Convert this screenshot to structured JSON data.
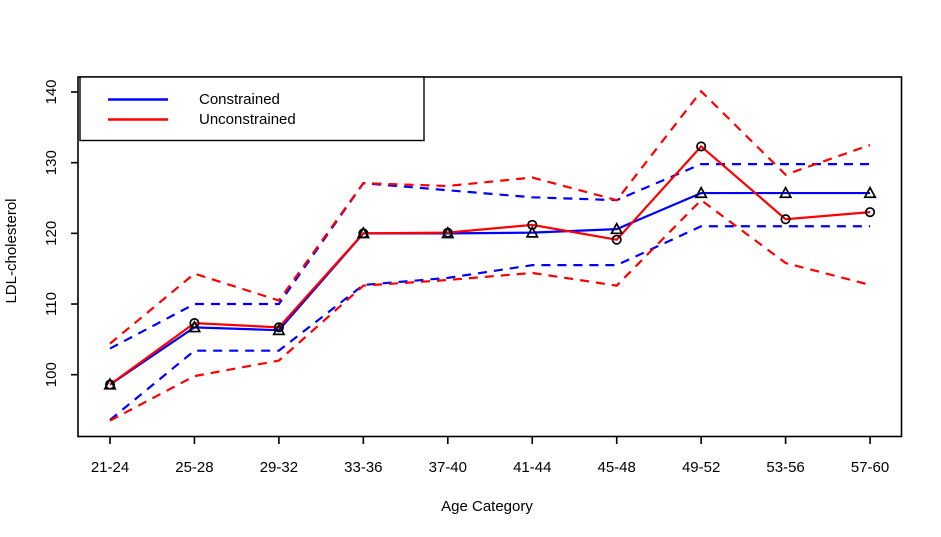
{
  "chart_data": {
    "type": "line",
    "title": "",
    "xlabel": "Age Category",
    "ylabel": "LDL-cholesterol",
    "ylim": [
      92,
      142
    ],
    "yticks": [
      100,
      110,
      120,
      130,
      140
    ],
    "categories": [
      "21-24",
      "25-28",
      "29-32",
      "33-36",
      "37-40",
      "41-44",
      "45-48",
      "49-52",
      "53-56",
      "57-60"
    ],
    "series": [
      {
        "name": "Constrained",
        "role": "estimate",
        "color": "#0000ff",
        "style": "solid",
        "marker": "triangle",
        "marker_color": "#000000",
        "values": [
          98.6,
          106.7,
          106.3,
          120.0,
          120.0,
          120.1,
          120.6,
          125.7,
          125.7,
          125.7
        ]
      },
      {
        "name": "Unconstrained",
        "role": "estimate",
        "color": "#ff0000",
        "style": "solid",
        "marker": "circle",
        "marker_color": "#000000",
        "values": [
          98.6,
          107.3,
          106.7,
          120.0,
          120.1,
          121.2,
          119.1,
          132.3,
          122.0,
          123.0
        ]
      },
      {
        "name": "Constrained upper band",
        "role": "upper-band",
        "color": "#0000ff",
        "style": "dashed",
        "marker": null,
        "values": [
          103.7,
          110.0,
          110.0,
          127.1,
          126.1,
          125.1,
          124.7,
          129.8,
          129.8,
          129.8
        ]
      },
      {
        "name": "Constrained lower band",
        "role": "lower-band",
        "color": "#0000ff",
        "style": "dashed",
        "marker": null,
        "values": [
          93.6,
          103.4,
          103.4,
          112.7,
          113.7,
          115.5,
          115.5,
          121.0,
          121.0,
          121.0
        ]
      },
      {
        "name": "Unconstrained upper band",
        "role": "upper-band",
        "color": "#ff0000",
        "style": "dashed",
        "marker": null,
        "values": [
          104.4,
          114.3,
          110.5,
          127.1,
          126.7,
          127.9,
          124.7,
          140.1,
          128.3,
          132.5
        ]
      },
      {
        "name": "Unconstrained lower band",
        "role": "lower-band",
        "color": "#ff0000",
        "style": "dashed",
        "marker": null,
        "values": [
          93.5,
          99.8,
          102.0,
          112.6,
          113.4,
          114.4,
          112.6,
          124.7,
          115.8,
          112.7
        ]
      }
    ],
    "legend": {
      "position": "top-left",
      "entries": [
        {
          "label": "Constrained",
          "color": "#0000ff"
        },
        {
          "label": "Unconstrained",
          "color": "#ff0000"
        }
      ]
    },
    "grid": false
  },
  "colors": {
    "constrained": "#0000ff",
    "unconstrained": "#ff0000",
    "axis": "#000000",
    "background": "#ffffff"
  }
}
